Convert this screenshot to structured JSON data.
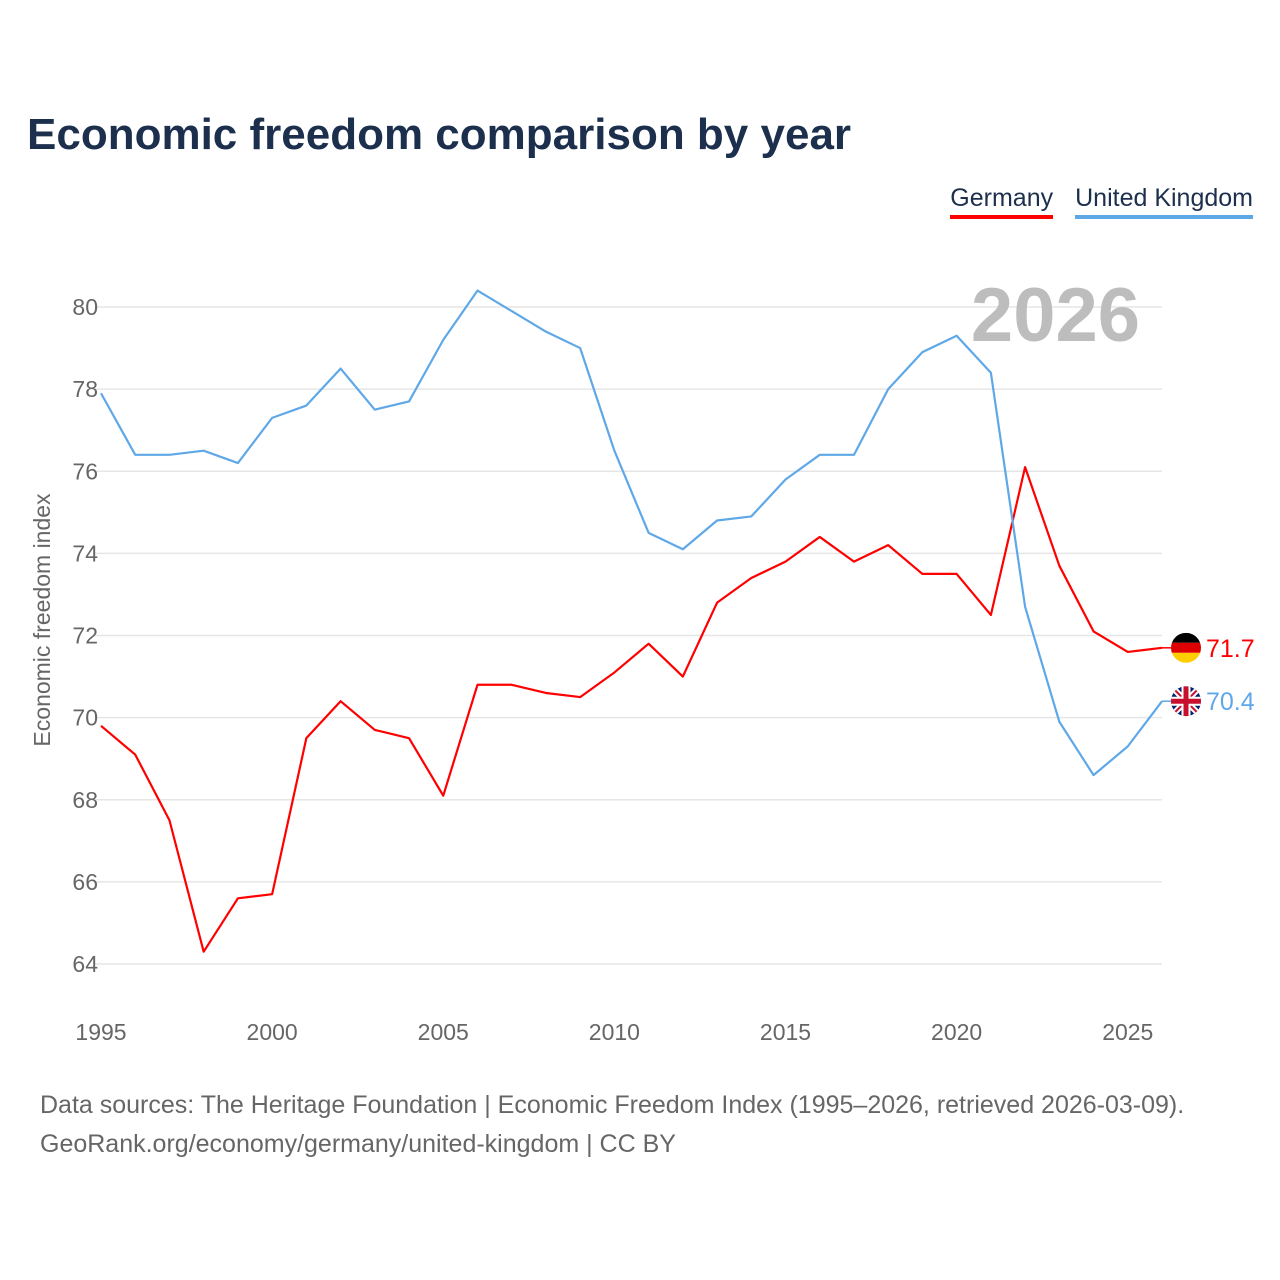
{
  "chart_data": {
    "type": "line",
    "title": "Economic freedom comparison by year",
    "xlabel": "",
    "ylabel": "Economic freedom index",
    "xlim": [
      1995,
      2026
    ],
    "ylim": [
      64,
      80
    ],
    "yticks": [
      64,
      66,
      68,
      70,
      72,
      74,
      76,
      78,
      80
    ],
    "xticks": [
      1995,
      2000,
      2005,
      2010,
      2015,
      2020,
      2025
    ],
    "grid": true,
    "legend_position": "top-right",
    "year_label": "2026",
    "x": [
      1995,
      1996,
      1997,
      1998,
      1999,
      2000,
      2001,
      2002,
      2003,
      2004,
      2005,
      2006,
      2007,
      2008,
      2009,
      2010,
      2011,
      2012,
      2013,
      2014,
      2015,
      2016,
      2017,
      2018,
      2019,
      2020,
      2021,
      2022,
      2023,
      2024,
      2025,
      2026
    ],
    "series": [
      {
        "name": "Germany",
        "color": "#ff0000",
        "end_label": "71.7",
        "flag": "germany-flag",
        "values": [
          69.8,
          69.1,
          67.5,
          64.3,
          65.6,
          65.7,
          69.5,
          70.4,
          69.7,
          69.5,
          68.1,
          70.8,
          70.8,
          70.6,
          70.5,
          71.1,
          71.8,
          71.0,
          72.8,
          73.4,
          73.8,
          74.4,
          73.8,
          74.2,
          73.5,
          73.5,
          72.5,
          76.1,
          73.7,
          72.1,
          71.6,
          71.7
        ]
      },
      {
        "name": "United Kingdom",
        "color": "#5fa8e8",
        "end_label": "70.4",
        "flag": "uk-flag",
        "values": [
          77.9,
          76.4,
          76.4,
          76.5,
          76.2,
          77.3,
          77.6,
          78.5,
          77.5,
          77.7,
          79.2,
          80.4,
          79.9,
          79.4,
          79.0,
          76.5,
          74.5,
          74.1,
          74.8,
          74.9,
          75.8,
          76.4,
          76.4,
          78.0,
          78.9,
          79.3,
          78.4,
          72.7,
          69.9,
          68.6,
          69.3,
          70.4
        ]
      }
    ]
  },
  "footer": {
    "line1": "Data sources: The Heritage Foundation | Economic Freedom Index (1995–2026, retrieved 2026-03-09).",
    "line2": "GeoRank.org/economy/germany/united-kingdom | CC BY"
  }
}
